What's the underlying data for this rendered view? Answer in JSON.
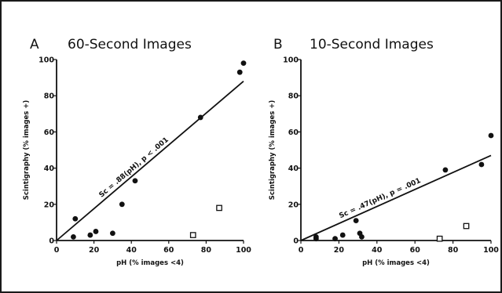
{
  "chart_data": [
    {
      "panel": "A",
      "title": "60-Second Images",
      "type": "scatter",
      "xlabel": "pH (% images <4)",
      "ylabel": "Scintigraphy (% images +)",
      "xlim": [
        0,
        100
      ],
      "ylim": [
        0,
        100
      ],
      "xticks": [
        0,
        20,
        40,
        60,
        80,
        100
      ],
      "yticks": [
        0,
        20,
        40,
        60,
        80,
        100
      ],
      "fit": {
        "label": "Sc = .88(pH), p < .001",
        "slope": 0.88,
        "intercept": 0
      },
      "series": [
        {
          "marker": "filled-circle",
          "points": [
            {
              "x": 9,
              "y": 2
            },
            {
              "x": 10,
              "y": 12
            },
            {
              "x": 18,
              "y": 3
            },
            {
              "x": 21,
              "y": 5
            },
            {
              "x": 30,
              "y": 4
            },
            {
              "x": 35,
              "y": 20
            },
            {
              "x": 42,
              "y": 33
            },
            {
              "x": 77,
              "y": 68
            },
            {
              "x": 98,
              "y": 93
            },
            {
              "x": 100,
              "y": 98
            }
          ]
        },
        {
          "marker": "open-square",
          "points": [
            {
              "x": 73,
              "y": 3
            },
            {
              "x": 87,
              "y": 18
            }
          ]
        }
      ]
    },
    {
      "panel": "B",
      "title": "10-Second Images",
      "type": "scatter",
      "xlabel": "pH (% images <4)",
      "ylabel": "Scintigraphy (% images +)",
      "xlim": [
        0,
        100
      ],
      "ylim": [
        0,
        100
      ],
      "xticks": [
        0,
        20,
        40,
        60,
        80,
        100
      ],
      "yticks": [
        0,
        20,
        40,
        60,
        80,
        100
      ],
      "fit": {
        "label": "Sc = .47(pH), p = .001",
        "slope": 0.47,
        "intercept": 0
      },
      "series": [
        {
          "marker": "filled-circle",
          "points": [
            {
              "x": 8,
              "y": 1
            },
            {
              "x": 8,
              "y": 2
            },
            {
              "x": 18,
              "y": 1
            },
            {
              "x": 22,
              "y": 3
            },
            {
              "x": 29,
              "y": 11
            },
            {
              "x": 31,
              "y": 4
            },
            {
              "x": 32,
              "y": 2
            },
            {
              "x": 76,
              "y": 39
            },
            {
              "x": 95,
              "y": 42
            },
            {
              "x": 100,
              "y": 58
            }
          ]
        },
        {
          "marker": "open-square",
          "points": [
            {
              "x": 73,
              "y": 1
            },
            {
              "x": 87,
              "y": 8
            }
          ]
        }
      ]
    }
  ]
}
